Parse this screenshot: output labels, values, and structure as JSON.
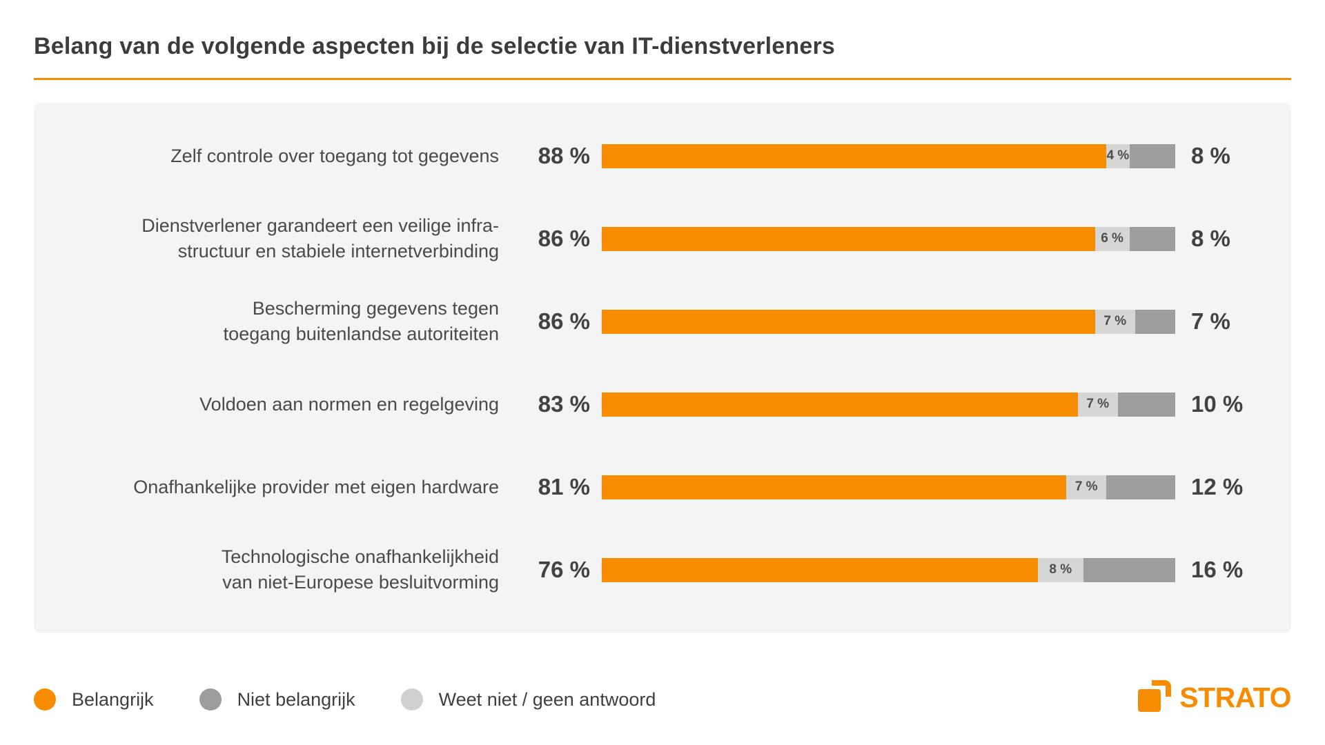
{
  "title": "Belang van de volgende aspecten bij de selectie van IT-dienstverleners",
  "colors": {
    "accent_orange": "#F88C00",
    "segment_light_gray": "#D6D6D6",
    "segment_dark_gray": "#9D9D9D",
    "panel_background": "#F4F4F4",
    "text_dark": "#3C3C3C"
  },
  "chart_data": {
    "type": "bar",
    "orientation": "horizontal-stacked",
    "title": "Belang van de volgende aspecten bij de selectie van IT-dienstverleners",
    "categories": [
      "Zelf controle over toegang tot gegevens",
      "Dienstverlener garandeert een veilige infrastructuur en stabiele internetverbinding",
      "Bescherming gegevens tegen toegang buitenlandse autoriteiten",
      "Voldoen aan normen en regelgeving",
      "Onafhankelijke provider met eigen hardware",
      "Technologische onafhankelijkheid van niet-Europese besluitvorming"
    ],
    "series": [
      {
        "name": "Belangrijk",
        "color": "#F88C00",
        "values": [
          88,
          86,
          86,
          83,
          81,
          76
        ]
      },
      {
        "name": "Weet niet / geen antwoord",
        "color": "#D6D6D6",
        "values": [
          4,
          6,
          7,
          7,
          7,
          8
        ]
      },
      {
        "name": "Niet belangrijk",
        "color": "#9D9D9D",
        "values": [
          8,
          8,
          7,
          10,
          12,
          16
        ]
      }
    ],
    "stack_order_note": "Bar segments left to right: Belangrijk (orange), Weet niet / geen antwoord (light gray, labeled inside), Niet belangrijk (dark gray, labeled right of bar)",
    "xlim": [
      0,
      100
    ],
    "value_suffix": " %",
    "legend_position": "bottom-left",
    "grid": false
  },
  "rows": [
    {
      "label_line1": "Zelf controle over toegang tot gegevens",
      "important_label": "88 %",
      "important_pct": 88,
      "unknown_label": "4 %",
      "unknown_pct": 4,
      "not_important_label": "8 %",
      "not_important_pct": 8
    },
    {
      "label_line1": "Dienstverlener garandeert een veilige infra-",
      "label_line2": "structuur en stabiele internetverbinding",
      "important_label": "86 %",
      "important_pct": 86,
      "unknown_label": "6 %",
      "unknown_pct": 6,
      "not_important_label": "8 %",
      "not_important_pct": 8
    },
    {
      "label_line1": "Bescherming gegevens tegen",
      "label_line2": "toegang buitenlandse autoriteiten",
      "important_label": "86 %",
      "important_pct": 86,
      "unknown_label": "7 %",
      "unknown_pct": 7,
      "not_important_label": "7 %",
      "not_important_pct": 7
    },
    {
      "label_line1": "Voldoen aan normen en regelgeving",
      "important_label": "83 %",
      "important_pct": 83,
      "unknown_label": "7 %",
      "unknown_pct": 7,
      "not_important_label": "10 %",
      "not_important_pct": 10
    },
    {
      "label_line1": "Onafhankelijke provider met eigen hardware",
      "important_label": "81 %",
      "important_pct": 81,
      "unknown_label": "7 %",
      "unknown_pct": 7,
      "not_important_label": "12 %",
      "not_important_pct": 12
    },
    {
      "label_line1": "Technologische onafhankelijkheid",
      "label_line2": "van niet-Europese besluitvorming",
      "important_label": "76 %",
      "important_pct": 76,
      "unknown_label": "8 %",
      "unknown_pct": 8,
      "not_important_label": "16 %",
      "not_important_pct": 16
    }
  ],
  "legend": [
    {
      "label": "Belangrijk"
    },
    {
      "label": "Niet belangrijk"
    },
    {
      "label": "Weet niet / geen antwoord"
    }
  ],
  "logo": {
    "text": "STRATO"
  }
}
